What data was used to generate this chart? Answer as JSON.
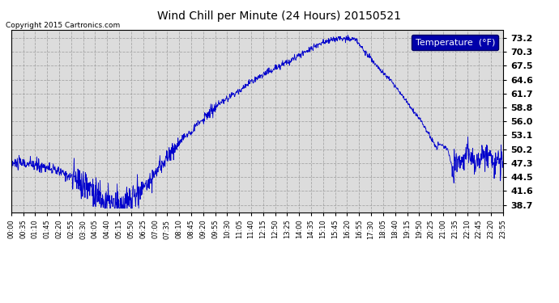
{
  "title": "Wind Chill per Minute (24 Hours) 20150521",
  "copyright_text": "Copyright 2015 Cartronics.com",
  "legend_label": "Temperature  (°F)",
  "line_color": "#0000CC",
  "background_color": "#ffffff",
  "plot_bg_color": "#dcdcdc",
  "grid_color": "#aaaaaa",
  "yticks": [
    38.7,
    41.6,
    44.5,
    47.3,
    50.2,
    53.1,
    56.0,
    58.8,
    61.7,
    64.6,
    67.5,
    70.3,
    73.2
  ],
  "ylim": [
    37.2,
    74.8
  ],
  "xtick_labels": [
    "00:00",
    "00:35",
    "01:10",
    "01:45",
    "02:20",
    "02:55",
    "03:30",
    "04:05",
    "04:40",
    "05:15",
    "05:50",
    "06:25",
    "07:00",
    "07:35",
    "08:10",
    "08:45",
    "09:20",
    "09:55",
    "10:30",
    "11:05",
    "11:40",
    "12:15",
    "12:50",
    "13:25",
    "14:00",
    "14:35",
    "15:10",
    "15:45",
    "16:20",
    "16:55",
    "17:30",
    "18:05",
    "18:40",
    "19:15",
    "19:50",
    "20:25",
    "21:00",
    "21:35",
    "22:10",
    "22:45",
    "23:20",
    "23:55"
  ],
  "legend_box_color": "#0000AA",
  "legend_text_color": "#ffffff"
}
